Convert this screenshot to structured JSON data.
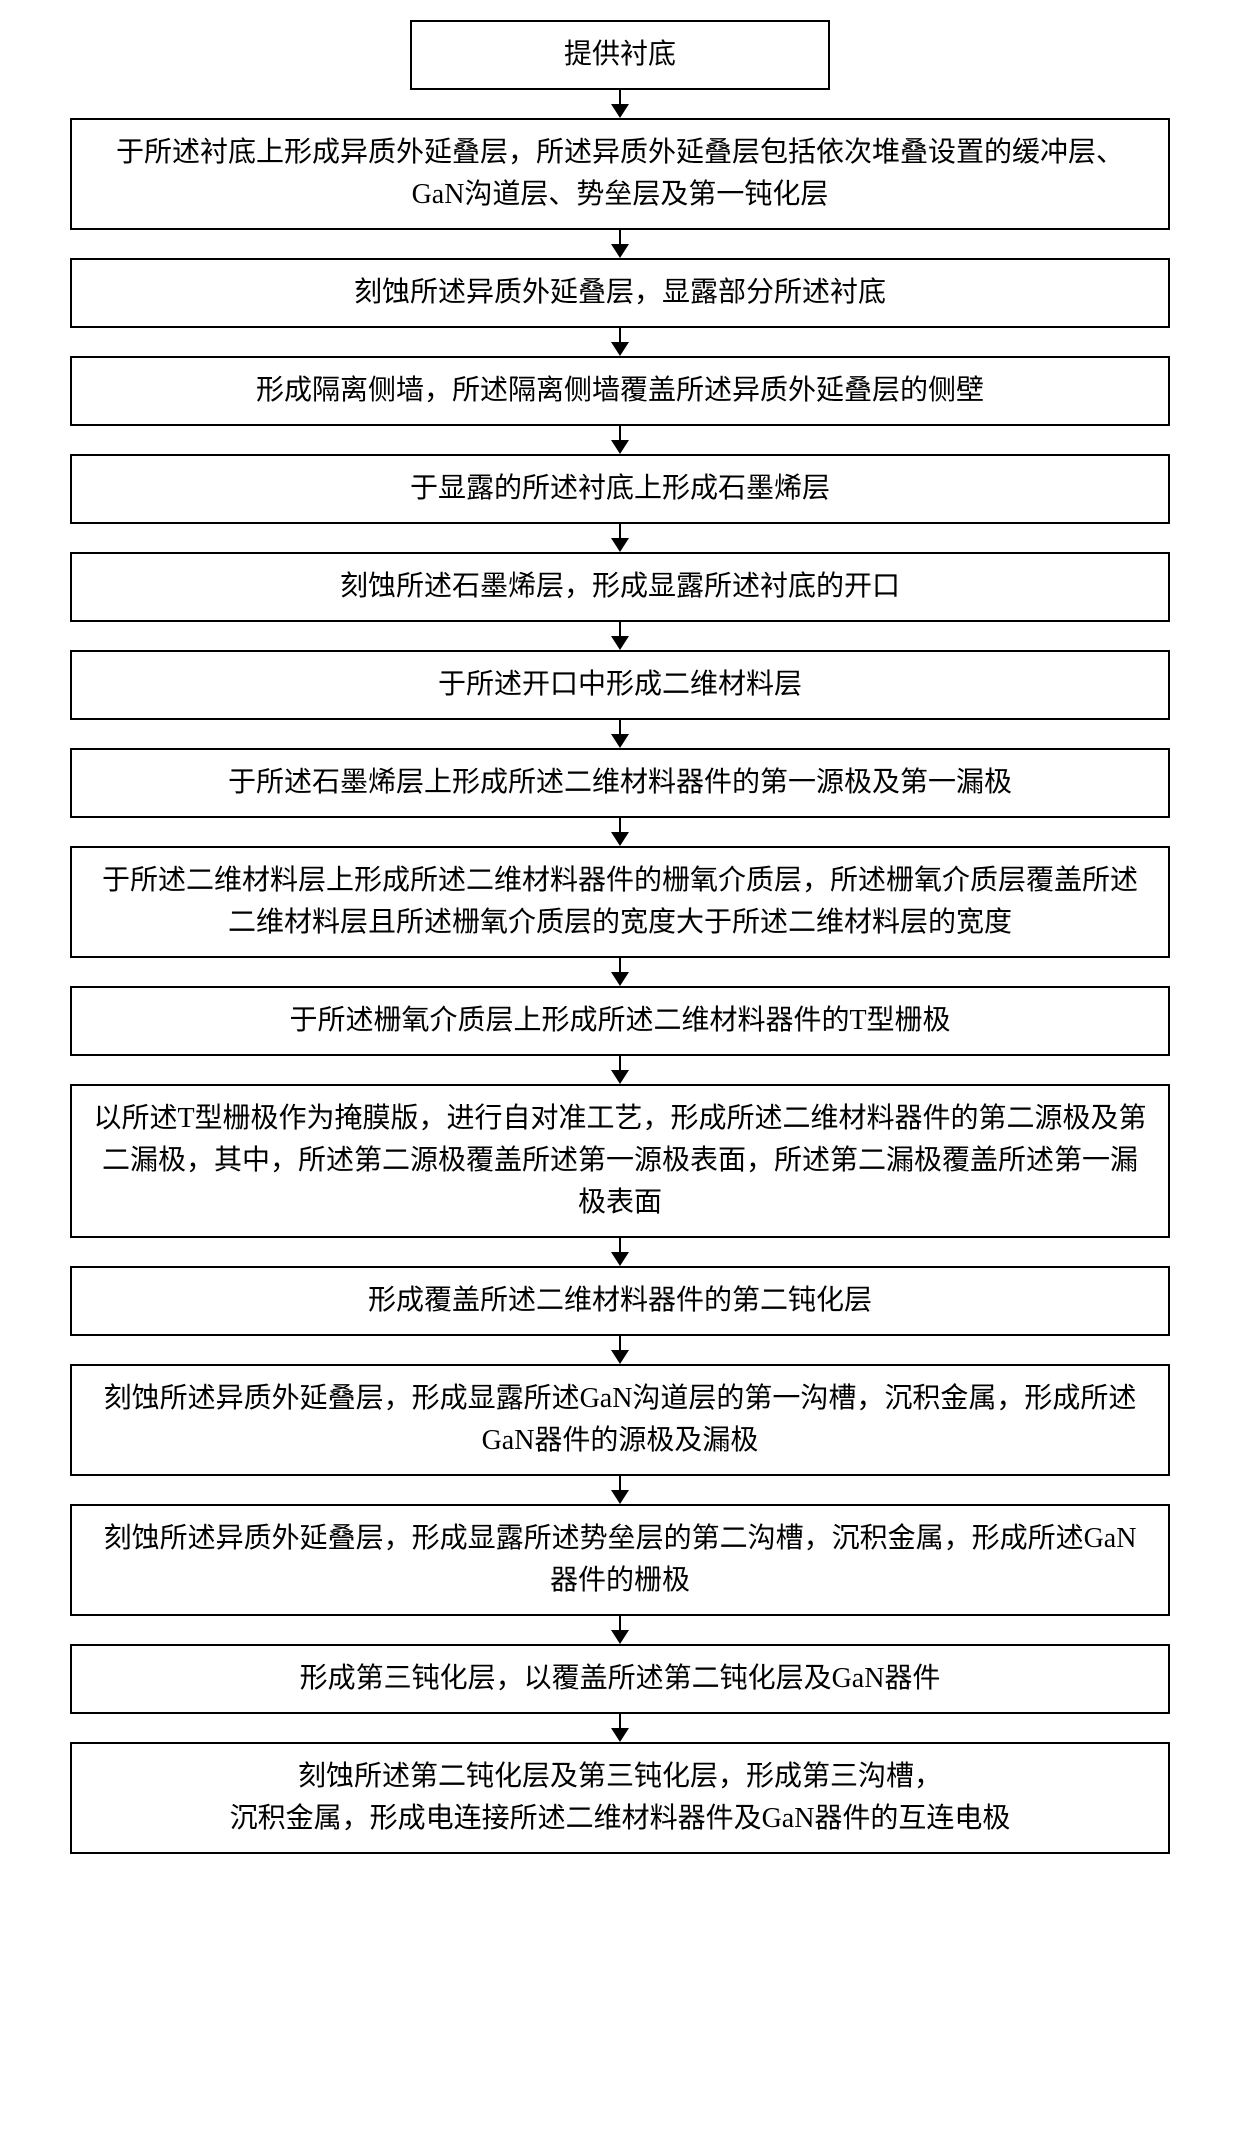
{
  "flowchart": {
    "type": "flowchart",
    "direction": "vertical",
    "background_color": "#ffffff",
    "border_color": "#000000",
    "border_width": 2,
    "text_color": "#000000",
    "font_size": 28,
    "font_family": "SimSun",
    "arrow_color": "#000000",
    "box_narrow_width": 420,
    "box_wide_width": 1100,
    "steps": [
      {
        "text": "提供衬底",
        "width": "narrow"
      },
      {
        "text": "于所述衬底上形成异质外延叠层，所述异质外延叠层包括依次堆叠设置的缓冲层、GaN沟道层、势垒层及第一钝化层",
        "width": "wide"
      },
      {
        "text": "刻蚀所述异质外延叠层，显露部分所述衬底",
        "width": "wide"
      },
      {
        "text": "形成隔离侧墙，所述隔离侧墙覆盖所述异质外延叠层的侧壁",
        "width": "wide"
      },
      {
        "text": "于显露的所述衬底上形成石墨烯层",
        "width": "wide"
      },
      {
        "text": "刻蚀所述石墨烯层，形成显露所述衬底的开口",
        "width": "wide"
      },
      {
        "text": "于所述开口中形成二维材料层",
        "width": "wide"
      },
      {
        "text": "于所述石墨烯层上形成所述二维材料器件的第一源极及第一漏极",
        "width": "wide"
      },
      {
        "text": "于所述二维材料层上形成所述二维材料器件的栅氧介质层，所述栅氧介质层覆盖所述二维材料层且所述栅氧介质层的宽度大于所述二维材料层的宽度",
        "width": "wide"
      },
      {
        "text": "于所述栅氧介质层上形成所述二维材料器件的T型栅极",
        "width": "wide"
      },
      {
        "text": "以所述T型栅极作为掩膜版，进行自对准工艺，形成所述二维材料器件的第二源极及第二漏极，其中，所述第二源极覆盖所述第一源极表面，所述第二漏极覆盖所述第一漏极表面",
        "width": "wide"
      },
      {
        "text": "形成覆盖所述二维材料器件的第二钝化层",
        "width": "wide"
      },
      {
        "text": "刻蚀所述异质外延叠层，形成显露所述GaN沟道层的第一沟槽，沉积金属，形成所述GaN器件的源极及漏极",
        "width": "wide"
      },
      {
        "text": "刻蚀所述异质外延叠层，形成显露所述势垒层的第二沟槽，沉积金属，形成所述GaN器件的栅极",
        "width": "wide"
      },
      {
        "text": "形成第三钝化层，以覆盖所述第二钝化层及GaN器件",
        "width": "wide"
      },
      {
        "text": "刻蚀所述第二钝化层及第三钝化层，形成第三沟槽，\n沉积金属，形成电连接所述二维材料器件及GaN器件的互连电极",
        "width": "wide"
      }
    ]
  }
}
